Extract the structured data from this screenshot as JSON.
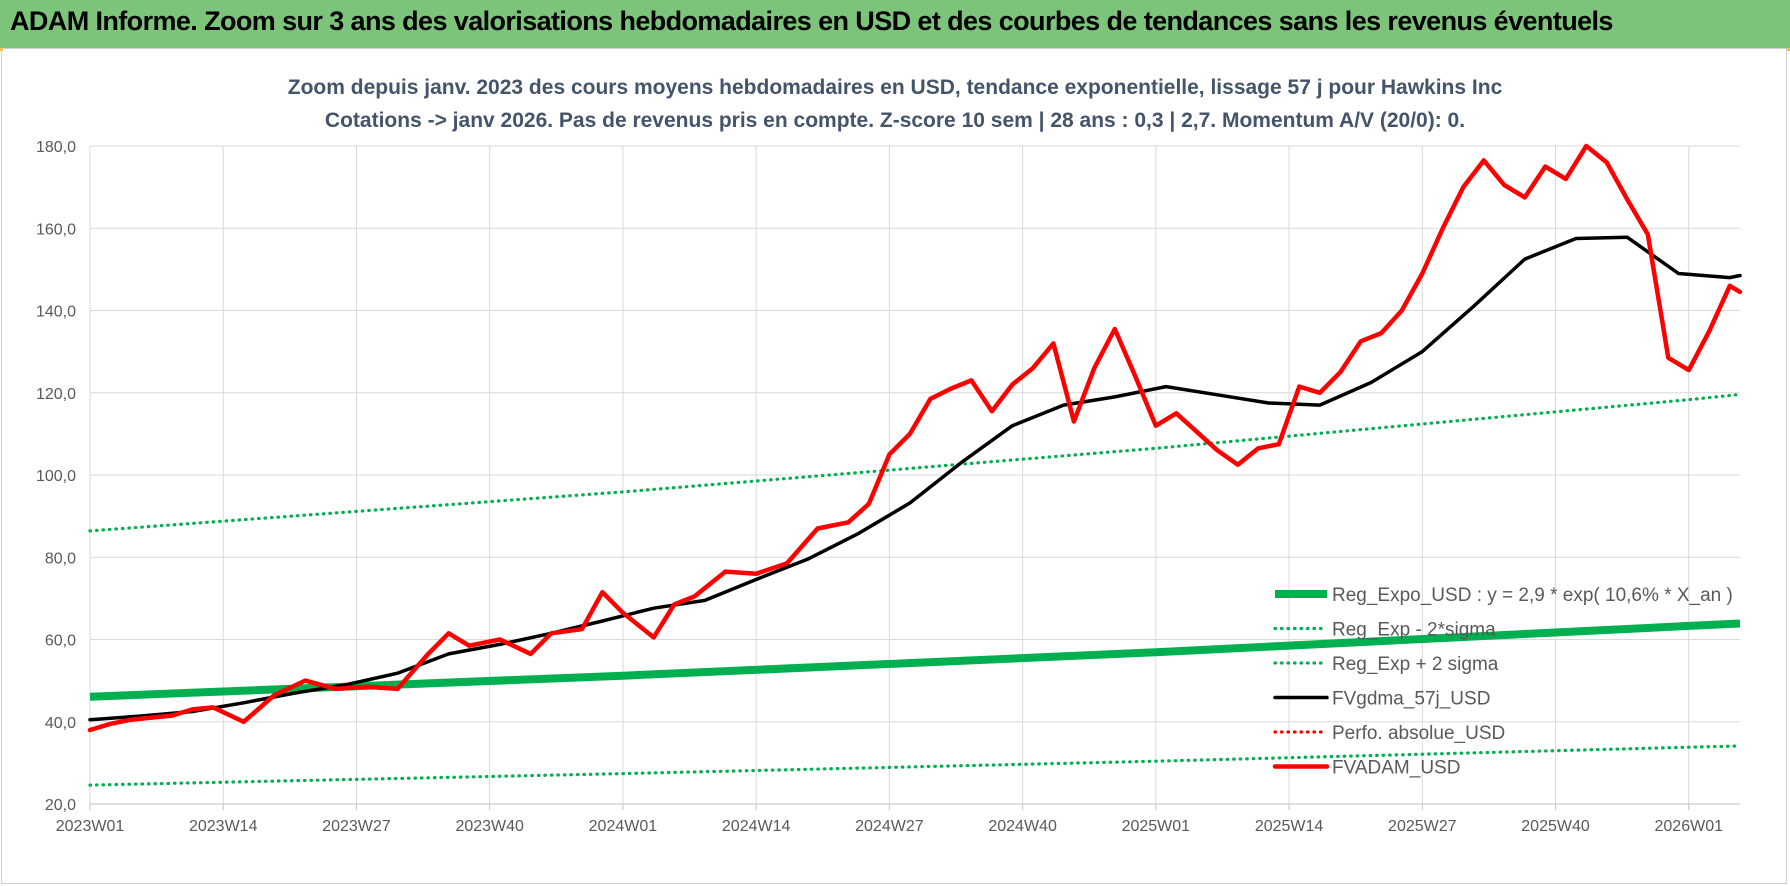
{
  "header": {
    "title": "ADAM Informe. Zoom sur 3 ans des valorisations hebdomadaires en USD et des courbes de tendances sans les revenus éventuels"
  },
  "chart_data": {
    "type": "line",
    "title_lines": [
      "Zoom depuis janv. 2023 des cours moyens hebdomadaires en USD, tendance exponentielle, lissage 57 j pour Hawkins Inc",
      "Cotations -> janv 2026. Pas de revenus pris en compte. Z-score 10 sem | 28 ans : 0,3 | 2,7. Momentum A/V (20/0): 0."
    ],
    "ylim": [
      20,
      180
    ],
    "y_ticks": [
      "20,0",
      "40,0",
      "60,0",
      "80,0",
      "100,0",
      "120,0",
      "140,0",
      "160,0",
      "180,0"
    ],
    "x_ticks": [
      "2023W01",
      "2023W14",
      "2023W27",
      "2023W40",
      "2024W01",
      "2024W14",
      "2024W27",
      "2024W40",
      "2025W01",
      "2025W14",
      "2025W27",
      "2025W40",
      "2026W01"
    ],
    "n_weeks": 162,
    "legend_position": "bottom-right",
    "grid": true,
    "series": [
      {
        "name": "Reg_Expo_USD : y = 2,9 * exp( 10,6% *  X_an )",
        "color": "#00b050",
        "style": "solid",
        "x": [
          0,
          52,
          104,
          156,
          161
        ],
        "values": [
          46.1,
          51.2,
          56.9,
          63.3,
          63.9
        ]
      },
      {
        "name": "Reg_Exp - 2*sigma",
        "color": "#00b050",
        "style": "dotted",
        "x": [
          0,
          52,
          104,
          156,
          161
        ],
        "values": [
          24.6,
          27.4,
          30.4,
          33.8,
          34.1
        ]
      },
      {
        "name": "Reg_Exp + 2 sigma",
        "color": "#00b050",
        "style": "dotted",
        "x": [
          0,
          52,
          104,
          156,
          161
        ],
        "values": [
          86.4,
          95.9,
          106.5,
          118.3,
          119.6
        ]
      },
      {
        "name": "FVgdma_57j_USD",
        "color": "#000000",
        "style": "solid",
        "x": [
          0,
          5,
          10,
          15,
          20,
          25,
          30,
          35,
          40,
          45,
          50,
          55,
          60,
          65,
          70,
          75,
          80,
          85,
          90,
          95,
          100,
          105,
          110,
          115,
          120,
          125,
          130,
          135,
          140,
          145,
          150,
          155,
          160,
          161
        ],
        "values": [
          40.5,
          41.4,
          42.5,
          44.6,
          47.0,
          49.0,
          51.8,
          56.5,
          58.8,
          61.5,
          64.5,
          67.6,
          69.5,
          74.6,
          79.5,
          85.8,
          93.2,
          103.0,
          112.0,
          117.0,
          119.0,
          121.5,
          119.5,
          117.5,
          117.0,
          122.5,
          130.0,
          141.0,
          152.5,
          157.5,
          157.8,
          149.0,
          148.0,
          148.5
        ]
      },
      {
        "name": "Perfo. absolue_USD",
        "color": "#ff0000",
        "style": "dotted",
        "x": [],
        "values": []
      },
      {
        "name": "FVADAM_USD",
        "color": "#ff0000",
        "style": "solid",
        "x": [
          0,
          2,
          4,
          6,
          8,
          10,
          12,
          15,
          18,
          21,
          24,
          27,
          30,
          33,
          35,
          37,
          40,
          43,
          45,
          48,
          50,
          52,
          55,
          57,
          59,
          62,
          65,
          68,
          71,
          74,
          76,
          78,
          80,
          82,
          84,
          86,
          88,
          90,
          92,
          94,
          96,
          98,
          100,
          102,
          104,
          106,
          108,
          110,
          112,
          114,
          116,
          118,
          120,
          122,
          124,
          126,
          128,
          130,
          132,
          134,
          136,
          138,
          140,
          142,
          144,
          146,
          148,
          150,
          152,
          154,
          156,
          158,
          160,
          161
        ],
        "values": [
          38.0,
          39.5,
          40.5,
          41.0,
          41.5,
          43.0,
          43.5,
          40.0,
          46.5,
          50.0,
          48.0,
          48.5,
          48.0,
          56.5,
          61.5,
          58.5,
          60.0,
          56.5,
          61.5,
          62.5,
          71.5,
          66.5,
          60.5,
          68.5,
          70.5,
          76.5,
          76.0,
          78.5,
          87.0,
          88.5,
          93.0,
          105.0,
          110.0,
          118.5,
          121.0,
          123.0,
          115.5,
          122.0,
          126.0,
          132.0,
          113.0,
          126.0,
          135.5,
          124.0,
          112.0,
          115.0,
          110.5,
          106.0,
          102.5,
          106.5,
          107.5,
          121.5,
          120.0,
          125.0,
          132.5,
          134.5,
          140.0,
          149.0,
          160.0,
          170.0,
          176.5,
          170.5,
          167.5,
          175.0,
          172.0,
          180.0,
          176.0,
          167.0,
          158.5,
          128.5,
          125.5,
          135.0,
          146.0,
          144.5
        ]
      }
    ]
  }
}
